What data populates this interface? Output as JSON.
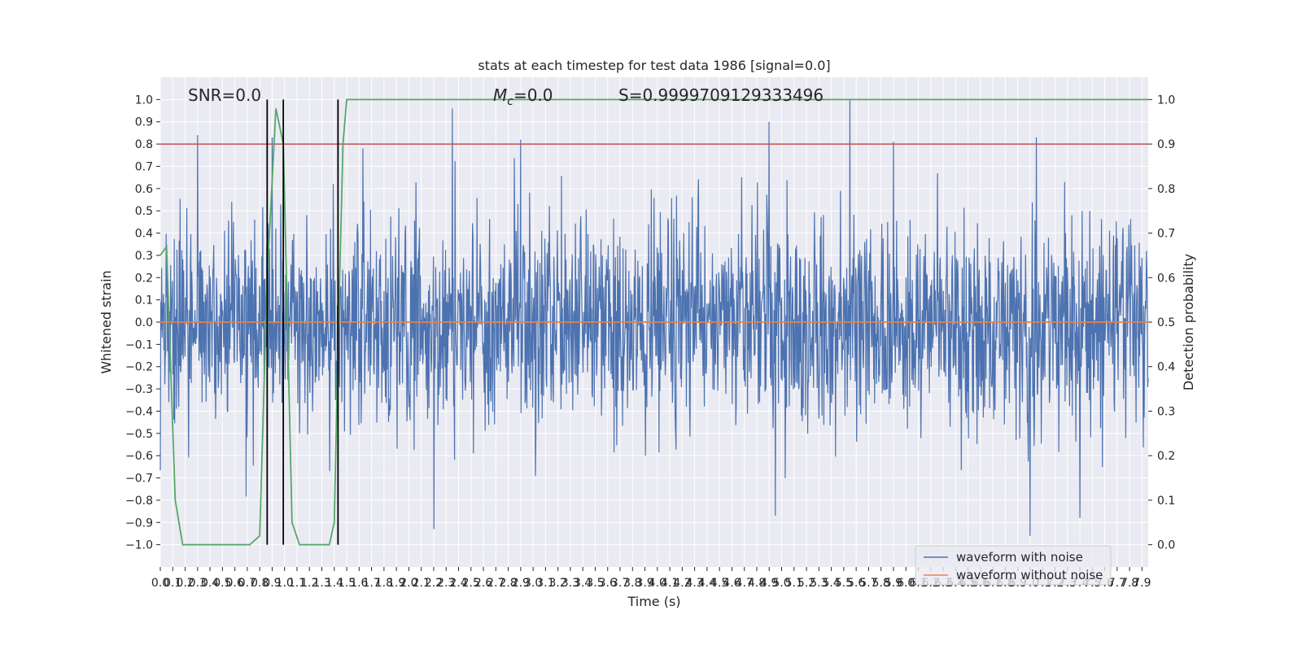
{
  "chart_data": {
    "type": "line",
    "title": "stats at each timestep for test data 1986 [signal=0.0]",
    "xlabel": "Time (s)",
    "ylabel": "Whitened strain",
    "y2label": "Detection probability",
    "xlim": [
      0,
      7.95
    ],
    "ylim": [
      -1.1,
      1.1
    ],
    "y2lim": [
      -0.05,
      1.05
    ],
    "x_ticks": [
      0.0,
      0.1,
      0.2,
      0.3,
      0.4,
      0.5,
      0.6,
      0.7,
      0.8,
      0.9,
      1.0,
      1.1,
      1.2,
      1.3,
      1.4,
      1.5,
      1.6,
      1.7,
      1.8,
      1.9,
      2.0,
      2.1,
      2.2,
      2.3,
      2.4,
      2.5,
      2.6,
      2.7,
      2.8,
      2.9,
      3.0,
      3.1,
      3.2,
      3.3,
      3.4,
      3.5,
      3.6,
      3.7,
      3.8,
      3.9,
      4.0,
      4.1,
      4.2,
      4.3,
      4.4,
      4.5,
      4.6,
      4.7,
      4.8,
      4.9,
      5.0,
      5.1,
      5.2,
      5.3,
      5.4,
      5.5,
      5.6,
      5.7,
      5.8,
      5.9,
      6.0,
      6.1,
      6.2,
      6.3,
      6.4,
      6.5,
      6.6,
      6.7,
      6.8,
      6.9,
      7.0,
      7.1,
      7.2,
      7.3,
      7.4,
      7.5,
      7.6,
      7.7,
      7.8,
      7.9
    ],
    "y_ticks": [
      -1.0,
      -0.9,
      -0.8,
      -0.7,
      -0.6,
      -0.5,
      -0.4,
      -0.3,
      -0.2,
      -0.1,
      0.0,
      0.1,
      0.2,
      0.3,
      0.4,
      0.5,
      0.6,
      0.7,
      0.8,
      0.9,
      1.0
    ],
    "y2_ticks": [
      0.0,
      0.1,
      0.2,
      0.3,
      0.4,
      0.5,
      0.6,
      0.7,
      0.8,
      0.9,
      1.0
    ],
    "grid": true,
    "legend_position": "lower-right",
    "annotations": {
      "snr": "SNR=0.0",
      "mc": "M_c=0.0",
      "mc_symbol": "M",
      "mc_subscript": "c",
      "mc_value": "=0.0",
      "s": "S=0.9999709129333496"
    },
    "series": [
      {
        "name": "waveform with noise",
        "color": "#4c72b0",
        "axis": "left",
        "kind": "noise",
        "sample_count": 2200,
        "envelope_peaks": [
          {
            "x": 0.3,
            "y": 0.84
          },
          {
            "x": 0.9,
            "y": 0.83
          },
          {
            "x": 2.35,
            "y": 0.96
          },
          {
            "x": 2.9,
            "y": 0.82
          },
          {
            "x": 4.9,
            "y": 0.9
          },
          {
            "x": 5.55,
            "y": 1.0
          },
          {
            "x": 5.9,
            "y": 0.81
          },
          {
            "x": 7.05,
            "y": 0.83
          },
          {
            "x": 2.2,
            "y": -0.93
          },
          {
            "x": 4.95,
            "y": -0.87
          },
          {
            "x": 7.0,
            "y": -0.96
          },
          {
            "x": 7.4,
            "y": -0.88
          }
        ]
      },
      {
        "name": "waveform without noise",
        "color": "#dd8452",
        "axis": "left",
        "x": [
          0.0,
          7.95
        ],
        "values": [
          0.0,
          0.0
        ]
      },
      {
        "name": "",
        "color": "#55a868",
        "axis": "right",
        "x": [
          0.0,
          0.05,
          0.12,
          0.18,
          0.3,
          0.5,
          0.72,
          0.8,
          0.86,
          0.93,
          0.99,
          1.06,
          1.12,
          1.24,
          1.36,
          1.4,
          1.43,
          1.47,
          1.5,
          7.95
        ],
        "values": [
          0.65,
          0.67,
          0.1,
          0.0,
          0.0,
          0.0,
          0.0,
          0.02,
          0.6,
          0.98,
          0.9,
          0.05,
          0.0,
          0.0,
          0.0,
          0.05,
          0.45,
          0.9,
          1.0,
          1.0
        ]
      }
    ],
    "threshold_line": {
      "axis": "right",
      "value": 0.9,
      "color": "#c44e52"
    },
    "vertical_markers": {
      "x": [
        0.86,
        0.99,
        1.43
      ],
      "color": "#000000"
    }
  }
}
